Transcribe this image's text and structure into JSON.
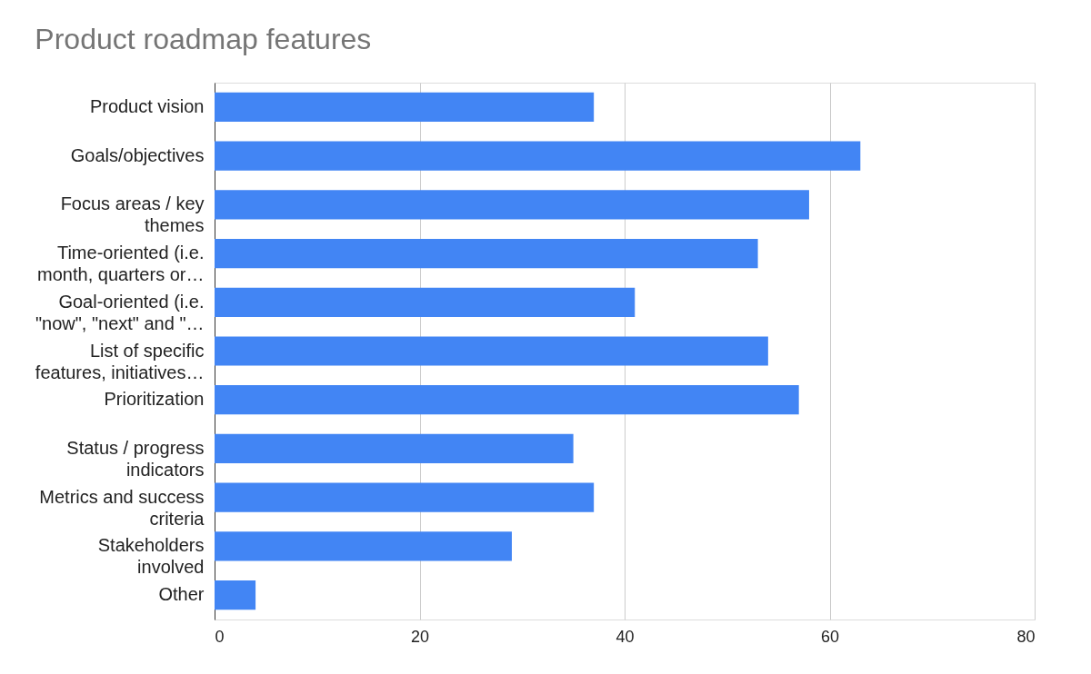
{
  "chart_data": {
    "type": "bar",
    "orientation": "horizontal",
    "title": "Product roadmap features",
    "categories": [
      "Product vision",
      "Goals/objectives",
      "Focus areas / key themes",
      "Time-oriented (i.e. month, quarters or…",
      "Goal-oriented (i.e. \"now\", \"next\" and \"…",
      "List of specific features, initiatives…",
      "Prioritization",
      "Status / progress indicators",
      "Metrics and success criteria",
      "Stakeholders involved",
      "Other"
    ],
    "values": [
      37,
      63,
      58,
      53,
      41,
      54,
      57,
      35,
      37,
      29,
      4
    ],
    "color": "#4285f4",
    "xlim": [
      0,
      80
    ],
    "xticks": [
      0,
      20,
      40,
      60,
      80
    ],
    "grid": "x"
  }
}
